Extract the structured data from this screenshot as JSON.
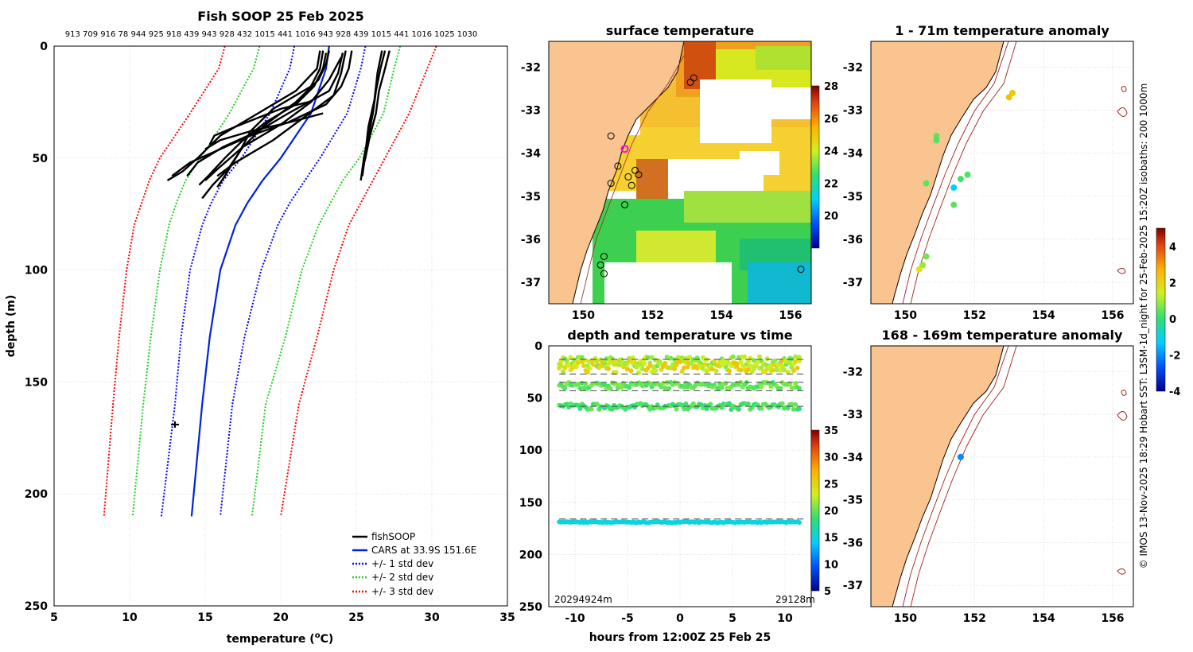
{
  "colors": {
    "land": "#f9c48f",
    "grid": "#c8c8c8",
    "cars": "#0022e0",
    "std1": "#0000ff",
    "std2": "#1fd01f",
    "std3": "#ff0000",
    "profile": "#000000",
    "isobath": "#a02020",
    "magenta": "#ff00ff"
  },
  "chart_data": [
    {
      "id": "profile",
      "type": "line",
      "title": "Fish SOOP 25 Feb 2025",
      "top_labels": "913 709 916 78 944 925 918 439 943 928 432 1015 441 1016 943 928 439 1015 441 1016 1025 1030",
      "xlabel": "temperature (",
      "xlabel_sup": "o",
      "xlabel_end": "C)",
      "ylabel": "depth (m)",
      "xlim": [
        5,
        35
      ],
      "ylim": [
        0,
        250
      ],
      "xticks": [
        "5",
        "10",
        "15",
        "20",
        "25",
        "30",
        "35"
      ],
      "yticks": [
        "0",
        "50",
        "100",
        "150",
        "200",
        "250"
      ],
      "legend": [
        "fishSOOP",
        "CARS at 33.9S 151.6E",
        "+/- 1 std dev",
        "+/- 2 std dev",
        "+/- 3 std dev"
      ],
      "series": [
        {
          "name": "CARS",
          "depth": [
            0,
            10,
            30,
            50,
            60,
            70,
            80,
            100,
            130,
            160,
            210
          ],
          "temp": [
            23.2,
            23.0,
            22.0,
            20.0,
            18.8,
            17.8,
            17.0,
            16.0,
            15.3,
            14.8,
            14.1
          ]
        },
        {
          "name": "-1 std",
          "depth": [
            0,
            10,
            30,
            50,
            60,
            70,
            80,
            100,
            130,
            160,
            210
          ],
          "temp": [
            20.9,
            20.6,
            19.3,
            17.4,
            16.2,
            15.4,
            14.8,
            14.0,
            13.4,
            13.0,
            12.1
          ]
        },
        {
          "name": "+1 std",
          "depth": [
            0,
            10,
            30,
            50,
            60,
            70,
            80,
            100,
            130,
            160,
            210
          ],
          "temp": [
            25.6,
            25.3,
            24.4,
            22.6,
            21.6,
            20.6,
            19.8,
            18.7,
            17.6,
            16.8,
            16.0
          ]
        },
        {
          "name": "-2 std",
          "depth": [
            0,
            10,
            30,
            50,
            60,
            70,
            80,
            100,
            130,
            160,
            210
          ],
          "temp": [
            18.6,
            18.2,
            16.6,
            14.7,
            13.7,
            13.1,
            12.6,
            12.0,
            11.4,
            10.9,
            10.2
          ]
        },
        {
          "name": "+2 std",
          "depth": [
            0,
            10,
            30,
            50,
            60,
            70,
            80,
            100,
            130,
            160,
            210
          ],
          "temp": [
            27.9,
            27.5,
            26.8,
            25.2,
            24.1,
            23.3,
            22.5,
            21.4,
            20.3,
            19.0,
            18.1
          ]
        },
        {
          "name": "-3 std",
          "depth": [
            0,
            10,
            30,
            50,
            60,
            70,
            80,
            100,
            130,
            160,
            210
          ],
          "temp": [
            16.3,
            15.9,
            14.0,
            12.0,
            11.3,
            10.8,
            10.3,
            9.8,
            9.3,
            8.9,
            8.3
          ]
        },
        {
          "name": "+3 std",
          "depth": [
            0,
            10,
            30,
            50,
            60,
            70,
            80,
            100,
            130,
            160,
            210
          ],
          "temp": [
            30.3,
            29.7,
            28.5,
            26.9,
            26.1,
            25.3,
            24.5,
            23.5,
            22.4,
            21.2,
            20.0
          ]
        }
      ],
      "fish_profiles": [
        {
          "depth": [
            2,
            8,
            15,
            25,
            35,
            45,
            55,
            62,
            68
          ],
          "temp": [
            23.2,
            23.0,
            22.5,
            21.0,
            19.0,
            17.5,
            16.5,
            15.5,
            14.8
          ]
        },
        {
          "depth": [
            2,
            10,
            18,
            28,
            38,
            48,
            58,
            63
          ],
          "temp": [
            22.8,
            22.6,
            22.0,
            19.5,
            18.0,
            17.2,
            16.3,
            15.8
          ]
        },
        {
          "depth": [
            2,
            10,
            20,
            30,
            40,
            50,
            56,
            60
          ],
          "temp": [
            22.6,
            22.4,
            21.0,
            18.5,
            16.0,
            14.5,
            13.5,
            12.5
          ]
        },
        {
          "depth": [
            2,
            12,
            22,
            32,
            42,
            52,
            58
          ],
          "temp": [
            24.3,
            24.0,
            23.5,
            21.5,
            19.5,
            17.0,
            15.8
          ]
        },
        {
          "depth": [
            3,
            12,
            20,
            30,
            38,
            45,
            52,
            58
          ],
          "temp": [
            24.1,
            23.8,
            23.2,
            20.5,
            18.5,
            16.2,
            14.5,
            13.8
          ]
        },
        {
          "depth": [
            2,
            10,
            18,
            26,
            34,
            40,
            46,
            52,
            58
          ],
          "temp": [
            24.7,
            24.5,
            24.0,
            23.0,
            20.5,
            18.0,
            16.0,
            14.0,
            12.8
          ]
        },
        {
          "depth": [
            5,
            15,
            25,
            35,
            45,
            55,
            60
          ],
          "temp": [
            24.0,
            23.2,
            22.0,
            20.0,
            17.5,
            15.8,
            15.0
          ]
        },
        {
          "depth": [
            3,
            10,
            18,
            26,
            34,
            42,
            50,
            58,
            62
          ],
          "temp": [
            23.0,
            22.8,
            22.2,
            21.0,
            19.0,
            17.5,
            16.3,
            15.2,
            14.6
          ]
        },
        {
          "depth": [
            2,
            10,
            20,
            30,
            40,
            50,
            55,
            60
          ],
          "temp": [
            26.9,
            26.6,
            26.3,
            26.1,
            25.8,
            25.5,
            25.4,
            25.3
          ]
        },
        {
          "depth": [
            2,
            10,
            20,
            30,
            40,
            50,
            55
          ],
          "temp": [
            27.2,
            26.9,
            26.5,
            26.3,
            25.9,
            25.6,
            25.4
          ]
        },
        {
          "depth": [
            2,
            12,
            24,
            36,
            48,
            58
          ],
          "temp": [
            26.7,
            26.4,
            26.2,
            25.8,
            25.6,
            25.4
          ]
        },
        {
          "depth": [
            30,
            34,
            38,
            42,
            46
          ],
          "temp": [
            22.8,
            20.6,
            18.0,
            16.0,
            15.0
          ]
        },
        {
          "depth": [
            25,
            28,
            32,
            36,
            40,
            44
          ],
          "temp": [
            21.8,
            20.0,
            18.5,
            17.0,
            15.6,
            15.3
          ]
        }
      ],
      "marker": {
        "temp": 13.0,
        "depth": 169
      }
    },
    {
      "id": "sst",
      "type": "heatmap",
      "title": "surface temperature",
      "xticks": [
        "150",
        "152",
        "154",
        "156"
      ],
      "yticks": [
        "-32",
        "-33",
        "-34",
        "-35",
        "-36",
        "-37"
      ],
      "xlim": [
        149.0,
        156.6
      ],
      "ylim": [
        -37.5,
        -31.4
      ],
      "cbar": {
        "min": 18,
        "max": 28,
        "ticks": [
          "20",
          "22",
          "24",
          "26",
          "28"
        ]
      },
      "circles": [
        [
          150.8,
          -33.6
        ],
        [
          151.0,
          -34.3
        ],
        [
          151.3,
          -34.55
        ],
        [
          151.5,
          -34.4
        ],
        [
          151.6,
          -34.5
        ],
        [
          151.4,
          -34.75
        ],
        [
          150.8,
          -34.7
        ],
        [
          151.2,
          -35.2
        ],
        [
          150.6,
          -36.4
        ],
        [
          150.5,
          -36.6
        ],
        [
          150.6,
          -36.8
        ],
        [
          153.2,
          -32.25
        ],
        [
          153.1,
          -32.35
        ],
        [
          156.3,
          -36.7
        ]
      ],
      "magenta": [
        151.2,
        -33.9
      ]
    },
    {
      "id": "anom1",
      "type": "scatter",
      "title": "1 - 71m temperature anomaly",
      "xticks": [
        "150",
        "152",
        "154",
        "156"
      ],
      "yticks": [
        "-32",
        "-33",
        "-34",
        "-35",
        "-36",
        "-37"
      ],
      "xlim": [
        149.0,
        156.6
      ],
      "ylim": [
        -37.5,
        -31.4
      ],
      "points": [
        [
          150.9,
          -33.6,
          0.5
        ],
        [
          150.9,
          -33.7,
          0.3
        ],
        [
          150.6,
          -34.7,
          0.4
        ],
        [
          151.6,
          -34.6,
          0.2
        ],
        [
          151.8,
          -34.5,
          0.3
        ],
        [
          151.4,
          -34.8,
          -1.3
        ],
        [
          151.4,
          -35.2,
          0.4
        ],
        [
          150.6,
          -36.4,
          0.6
        ],
        [
          150.5,
          -36.6,
          0.9
        ],
        [
          150.4,
          -36.7,
          1.7
        ],
        [
          153.1,
          -32.6,
          2.2
        ],
        [
          153.0,
          -32.7,
          2.4
        ]
      ]
    },
    {
      "id": "anom2",
      "type": "scatter",
      "title": "168 - 169m temperature anomaly",
      "xticks": [
        "150",
        "152",
        "154",
        "156"
      ],
      "yticks": [
        "-32",
        "-33",
        "-34",
        "-35",
        "-36",
        "-37"
      ],
      "xlim": [
        149.0,
        156.6
      ],
      "ylim": [
        -37.5,
        -31.4
      ],
      "points": [
        [
          151.6,
          -34.0,
          -2.0
        ]
      ],
      "anom_cbar": {
        "min": -4,
        "max": 5,
        "ticks": [
          "4",
          "2",
          "0",
          "-2",
          "-4"
        ]
      }
    },
    {
      "id": "timeseries",
      "type": "scatter",
      "title": "depth and temperature vs time",
      "xlabel": "hours from 12:00Z 25 Feb 25",
      "xlim": [
        -12.5,
        12.5
      ],
      "ylim": [
        0,
        250
      ],
      "xticks": [
        "-10",
        "-5",
        "0",
        "5",
        "10"
      ],
      "yticks": [
        "0",
        "50",
        "100",
        "150",
        "200",
        "250"
      ],
      "dashed_depths": [
        13,
        27,
        35,
        43,
        58,
        166
      ],
      "bands": [
        {
          "depth": 15,
          "temp": 22,
          "spread": 5
        },
        {
          "depth": 20,
          "temp": 24,
          "spread": 6
        },
        {
          "depth": 38,
          "temp": 20,
          "spread": 3
        },
        {
          "depth": 58,
          "temp": 19,
          "spread": 3
        },
        {
          "depth": 169,
          "temp": 15,
          "spread": 0.5
        }
      ],
      "cbar": {
        "min": 5,
        "max": 35,
        "ticks": [
          "35",
          "30",
          "25",
          "20",
          "15",
          "10",
          "5"
        ]
      },
      "left_note": "20294924m",
      "right_note": "29128m"
    }
  ],
  "side_caption": "© IMOS 13-Nov-2025 18:29 Hobart SST: L3SM-1d_night for 25-Feb-2025 15:20Z isobaths: 200  1000m"
}
